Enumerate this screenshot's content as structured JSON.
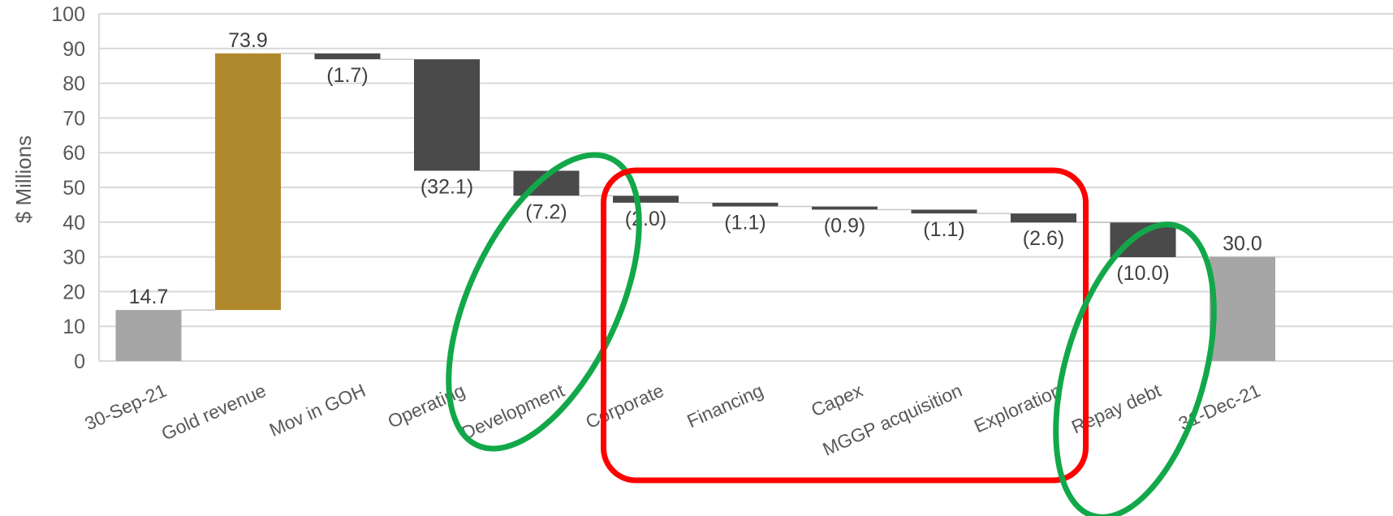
{
  "chart_data": {
    "type": "bar",
    "subtype": "waterfall",
    "title": "",
    "xlabel": "",
    "ylabel": "$ Millions",
    "ylim": [
      0,
      100
    ],
    "yticks": [
      0,
      10,
      20,
      30,
      40,
      50,
      60,
      70,
      80,
      90,
      100
    ],
    "grid": true,
    "legend": "none",
    "categories": [
      "30-Sep-21",
      "Gold revenue",
      "Mov in GOH",
      "Operating",
      "Development",
      "Corporate",
      "Financing",
      "Capex",
      "MGGP acquisition",
      "Exploration",
      "Repay debt",
      "31-Dec-21"
    ],
    "values": [
      14.7,
      73.9,
      -1.7,
      -32.1,
      -7.2,
      -2.0,
      -1.1,
      -0.9,
      -1.1,
      -2.6,
      -10.0,
      30.0
    ],
    "kinds": [
      "total",
      "increase",
      "decrease",
      "decrease",
      "decrease",
      "decrease",
      "decrease",
      "decrease",
      "decrease",
      "decrease",
      "decrease",
      "total"
    ],
    "data_labels": [
      "14.7",
      "73.9",
      "(1.7)",
      "(32.1)",
      "(7.2)",
      "(2.0)",
      "(1.1)",
      "(0.9)",
      "(1.1)",
      "(2.6)",
      "(10.0)",
      "30.0"
    ],
    "colors": {
      "total": "#a6a6a6",
      "increase": "#b0892d",
      "decrease": "#4a4a4a",
      "grid": "#d9d9d9",
      "text": "#595959"
    },
    "annotations": [
      {
        "shape": "ellipse",
        "color": "#12a84a",
        "around": "Development"
      },
      {
        "shape": "rounded-rectangle",
        "color": "#ff0000",
        "around": [
          "Corporate",
          "Financing",
          "Capex",
          "MGGP acquisition",
          "Exploration"
        ]
      },
      {
        "shape": "ellipse",
        "color": "#12a84a",
        "around": "Repay debt"
      }
    ]
  }
}
